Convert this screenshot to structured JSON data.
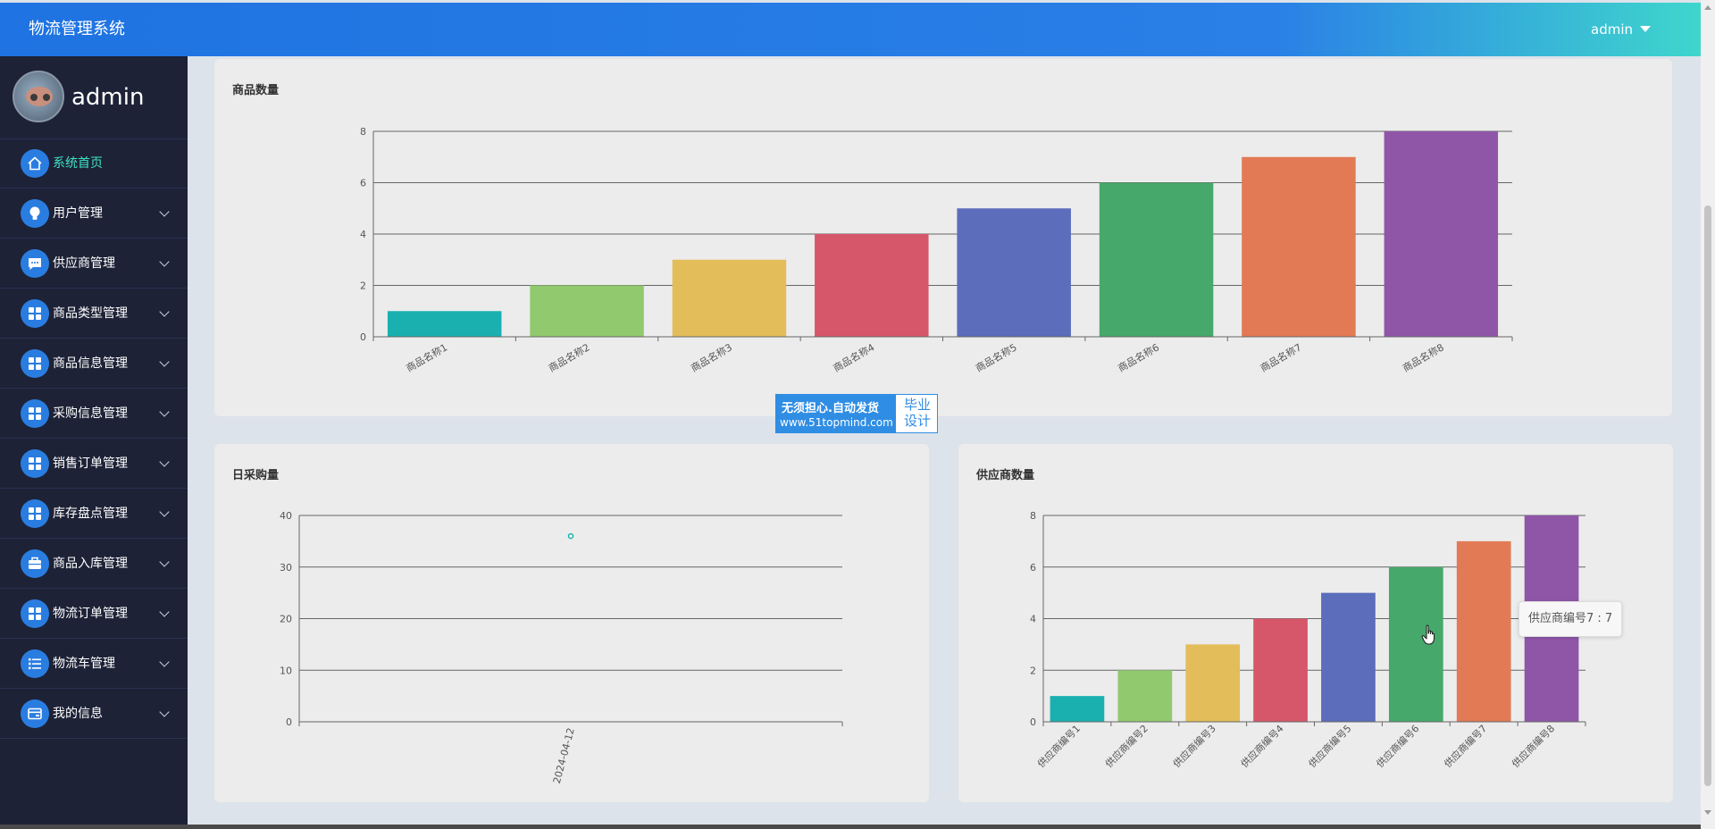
{
  "app": {
    "title": "物流管理系统",
    "user_menu": "admin"
  },
  "sidebar": {
    "profile_name": "admin",
    "items": [
      {
        "label": "系统首页",
        "icon": "home-icon",
        "active": true
      },
      {
        "label": "用户管理",
        "icon": "bulb-icon"
      },
      {
        "label": "供应商管理",
        "icon": "chat-icon"
      },
      {
        "label": "商品类型管理",
        "icon": "grid-icon"
      },
      {
        "label": "商品信息管理",
        "icon": "grid-icon"
      },
      {
        "label": "采购信息管理",
        "icon": "grid-icon"
      },
      {
        "label": "销售订单管理",
        "icon": "grid-icon"
      },
      {
        "label": "库存盘点管理",
        "icon": "grid-icon"
      },
      {
        "label": "商品入库管理",
        "icon": "briefcase-icon"
      },
      {
        "label": "物流订单管理",
        "icon": "grid-icon"
      },
      {
        "label": "物流车管理",
        "icon": "list-icon"
      },
      {
        "label": "我的信息",
        "icon": "wallet-icon"
      }
    ]
  },
  "watermark": {
    "line1": "无须担心.自动发货",
    "line2": "www.51topmind.com",
    "badge_1": "毕业",
    "badge_2": "设计"
  },
  "tooltip": {
    "text": "供应商编号7 : 7"
  },
  "chart_data": [
    {
      "type": "bar",
      "title": "商品数量",
      "categories": [
        "商品名称1",
        "商品名称2",
        "商品名称3",
        "商品名称4",
        "商品名称5",
        "商品名称6",
        "商品名称7",
        "商品名称8"
      ],
      "values": [
        1,
        2,
        3,
        4,
        5,
        6,
        7,
        8
      ],
      "ylim": [
        0,
        8
      ],
      "yticks": [
        0,
        2,
        4,
        6,
        8
      ],
      "colors": [
        "#1ab0b0",
        "#91c96f",
        "#e2bd59",
        "#d6576a",
        "#5b6dbb",
        "#47a86b",
        "#e27a55",
        "#8f56a8"
      ],
      "grid": true
    },
    {
      "type": "scatter",
      "title": "日采购量",
      "categories": [
        "2024-04-12"
      ],
      "values": [
        36
      ],
      "ylim": [
        0,
        40
      ],
      "yticks": [
        0,
        10,
        20,
        30,
        40
      ],
      "colors": [
        "#1ab0b0"
      ],
      "grid": true
    },
    {
      "type": "bar",
      "title": "供应商数量",
      "categories": [
        "供应商编号1",
        "供应商编号2",
        "供应商编号3",
        "供应商编号4",
        "供应商编号5",
        "供应商编号6",
        "供应商编号7",
        "供应商编号8"
      ],
      "values": [
        1,
        2,
        3,
        4,
        5,
        6,
        7,
        8
      ],
      "ylim": [
        0,
        8
      ],
      "yticks": [
        0,
        2,
        4,
        6,
        8
      ],
      "colors": [
        "#1ab0b0",
        "#91c96f",
        "#e2bd59",
        "#d6576a",
        "#5b6dbb",
        "#47a86b",
        "#e27a55",
        "#8f56a8"
      ],
      "grid": true
    }
  ]
}
